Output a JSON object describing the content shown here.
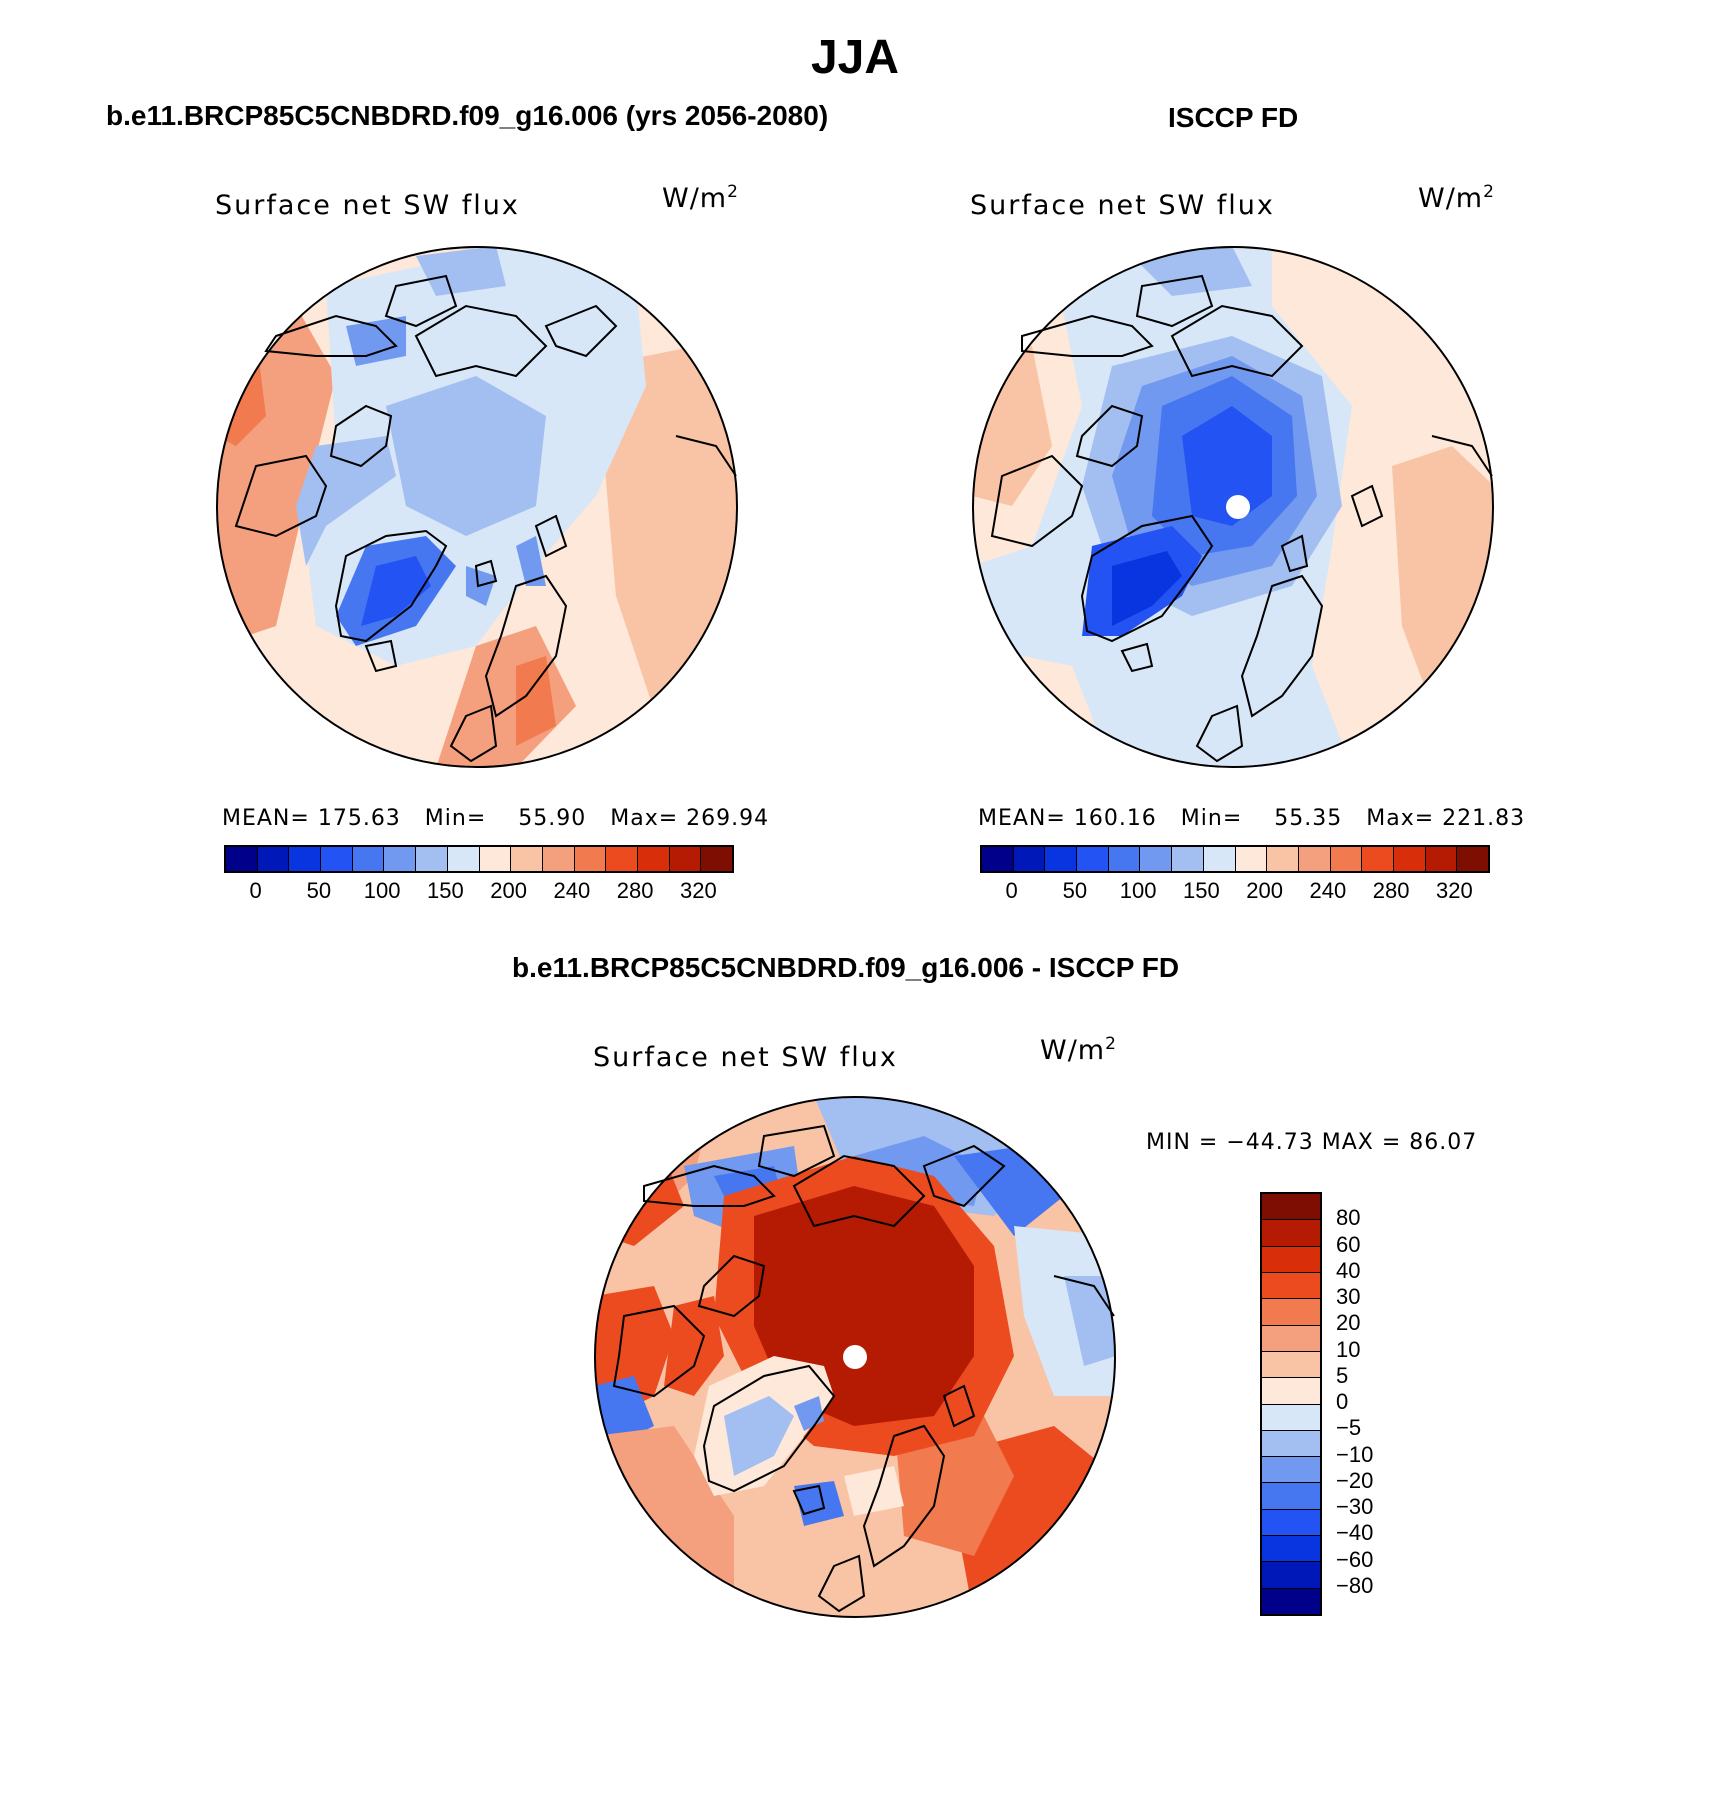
{
  "main_title": "JJA",
  "panels": [
    {
      "title": "b.e11.BRCP85C5CNBDRD.f09_g16.006 (yrs 2056-2080)",
      "variable": "Surface net SW flux",
      "units_base": "W/m",
      "units_exp": "2",
      "stats": {
        "mean_label": "MEAN=",
        "mean": "175.63",
        "min_label": "Min=",
        "min": "55.90",
        "max_label": "Max=",
        "max": "269.94"
      }
    },
    {
      "title": "ISCCP FD",
      "variable": "Surface net SW flux",
      "units_base": "W/m",
      "units_exp": "2",
      "stats": {
        "mean_label": "MEAN=",
        "mean": "160.16",
        "min_label": "Min=",
        "min": "55.35",
        "max_label": "Max=",
        "max": "221.83"
      }
    }
  ],
  "field_colorbar": {
    "colors": [
      "#00008a",
      "#0018b8",
      "#0835df",
      "#2453f4",
      "#4677f0",
      "#7199ef",
      "#a3bff1",
      "#d8e7f8",
      "#fde8d9",
      "#f9c3a6",
      "#f4a07e",
      "#f17a4f",
      "#ec4b20",
      "#d82e0a",
      "#b51a03",
      "#7e0d02"
    ],
    "tick_labels": [
      "0",
      "50",
      "100",
      "150",
      "200",
      "240",
      "280",
      "320"
    ]
  },
  "diff_panel": {
    "title": "b.e11.BRCP85C5CNBDRD.f09_g16.006 - ISCCP FD",
    "variable": "Surface net SW flux",
    "units_base": "W/m",
    "units_exp": "2",
    "minmax": "MIN = −44.73  MAX =   86.07",
    "colorbar": {
      "colors": [
        "#7e0d02",
        "#b51a03",
        "#d82e0a",
        "#ec4b20",
        "#f17a4f",
        "#f4a07e",
        "#f9c3a6",
        "#fde8d9",
        "#d8e7f8",
        "#a3bff1",
        "#7199ef",
        "#4677f0",
        "#2453f4",
        "#0835df",
        "#0018b8",
        "#00008a"
      ],
      "tick_labels": [
        "80",
        "60",
        "40",
        "30",
        "20",
        "10",
        "5",
        "0",
        "−5",
        "−10",
        "−20",
        "−30",
        "−40",
        "−60",
        "−80"
      ]
    }
  }
}
